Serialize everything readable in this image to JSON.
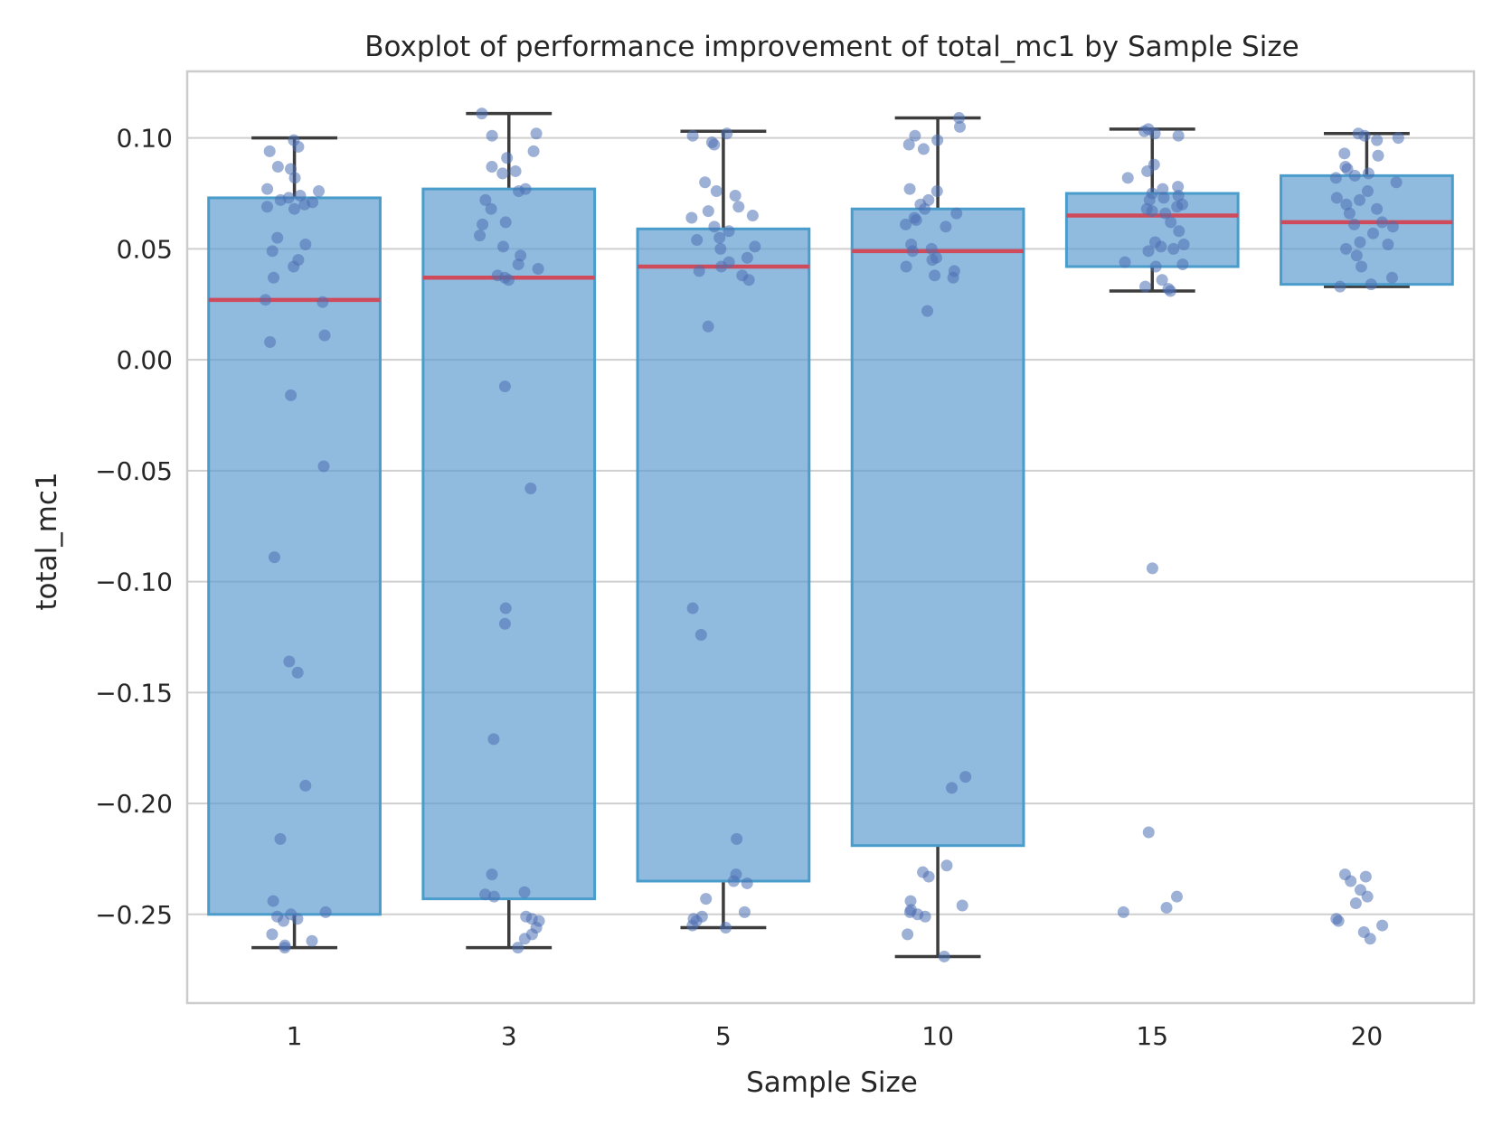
{
  "chart_data": {
    "type": "box",
    "title": "Boxplot of performance improvement of total_mc1 by Sample Size",
    "xlabel": "Sample Size",
    "ylabel": "total_mc1",
    "categories": [
      "1",
      "3",
      "5",
      "10",
      "15",
      "20"
    ],
    "ylim": [
      -0.29,
      0.13
    ],
    "yticks": [
      0.1,
      0.05,
      0.0,
      -0.05,
      -0.1,
      -0.15,
      -0.2,
      -0.25
    ],
    "ytick_labels": [
      "0.10",
      "0.05",
      "0.00",
      "−0.05",
      "−0.10",
      "−0.15",
      "−0.20",
      "−0.25"
    ],
    "grid": true,
    "colors": {
      "box_fill": "#5b9bd0",
      "box_edge": "#4a9ccb",
      "median": "#cf4a5a",
      "whisker": "#3d3d3d",
      "points": "#4c6fb2",
      "grid": "#cfcfcf",
      "frame": "#cccccc"
    },
    "boxes": [
      {
        "category": "1",
        "whisker_low": -0.265,
        "q1": -0.25,
        "median": 0.027,
        "q3": 0.073,
        "whisker_high": 0.1
      },
      {
        "category": "3",
        "whisker_low": -0.265,
        "q1": -0.243,
        "median": 0.037,
        "q3": 0.077,
        "whisker_high": 0.111
      },
      {
        "category": "5",
        "whisker_low": -0.256,
        "q1": -0.235,
        "median": 0.042,
        "q3": 0.059,
        "whisker_high": 0.103
      },
      {
        "category": "10",
        "whisker_low": -0.269,
        "q1": -0.219,
        "median": 0.049,
        "q3": 0.068,
        "whisker_high": 0.109
      },
      {
        "category": "15",
        "whisker_low": 0.031,
        "q1": 0.042,
        "median": 0.065,
        "q3": 0.075,
        "whisker_high": 0.104
      },
      {
        "category": "20",
        "whisker_low": 0.033,
        "q1": 0.034,
        "median": 0.062,
        "q3": 0.083,
        "whisker_high": 0.102
      }
    ],
    "points": [
      [
        0.099,
        0.096,
        0.094,
        0.087,
        0.086,
        0.082,
        0.077,
        0.076,
        0.074,
        0.073,
        0.072,
        0.071,
        0.07,
        0.069,
        0.068,
        0.055,
        0.052,
        0.049,
        0.045,
        0.042,
        0.037,
        0.027,
        0.026,
        0.011,
        0.008,
        -0.016,
        -0.048,
        -0.089,
        -0.136,
        -0.141,
        -0.192,
        -0.216,
        -0.244,
        -0.249,
        -0.25,
        -0.251,
        -0.252,
        -0.253,
        -0.259,
        -0.262,
        -0.264,
        -0.265
      ],
      [
        0.111,
        0.102,
        0.101,
        0.094,
        0.091,
        0.087,
        0.085,
        0.084,
        0.077,
        0.076,
        0.072,
        0.068,
        0.062,
        0.061,
        0.056,
        0.051,
        0.047,
        0.043,
        0.041,
        0.038,
        0.037,
        0.036,
        -0.012,
        -0.058,
        -0.112,
        -0.119,
        -0.171,
        -0.232,
        -0.24,
        -0.241,
        -0.242,
        -0.251,
        -0.252,
        -0.253,
        -0.256,
        -0.259,
        -0.261,
        -0.265
      ],
      [
        0.102,
        0.101,
        0.098,
        0.097,
        0.08,
        0.076,
        0.074,
        0.069,
        0.067,
        0.065,
        0.064,
        0.06,
        0.058,
        0.055,
        0.054,
        0.051,
        0.05,
        0.046,
        0.044,
        0.042,
        0.04,
        0.038,
        0.036,
        0.015,
        -0.112,
        -0.124,
        -0.216,
        -0.232,
        -0.235,
        -0.236,
        -0.243,
        -0.249,
        -0.251,
        -0.252,
        -0.253,
        -0.255,
        -0.256
      ],
      [
        0.109,
        0.105,
        0.101,
        0.099,
        0.097,
        0.095,
        0.076,
        0.077,
        0.072,
        0.07,
        0.068,
        0.066,
        0.064,
        0.063,
        0.061,
        0.06,
        0.052,
        0.05,
        0.049,
        0.046,
        0.045,
        0.042,
        0.04,
        0.038,
        0.037,
        0.022,
        -0.188,
        -0.193,
        -0.228,
        -0.231,
        -0.233,
        -0.244,
        -0.246,
        -0.248,
        -0.249,
        -0.25,
        -0.251,
        -0.259,
        -0.269
      ],
      [
        0.104,
        0.103,
        0.102,
        0.101,
        0.088,
        0.085,
        0.082,
        0.078,
        0.077,
        0.075,
        0.074,
        0.073,
        0.072,
        0.07,
        0.069,
        0.068,
        0.067,
        0.066,
        0.062,
        0.058,
        0.053,
        0.052,
        0.051,
        0.05,
        0.049,
        0.044,
        0.043,
        0.042,
        0.036,
        0.033,
        0.032,
        0.031,
        -0.094,
        -0.213,
        -0.242,
        -0.247,
        -0.249
      ],
      [
        0.102,
        0.101,
        0.1,
        0.099,
        0.093,
        0.092,
        0.087,
        0.086,
        0.084,
        0.083,
        0.082,
        0.08,
        0.076,
        0.073,
        0.072,
        0.07,
        0.068,
        0.066,
        0.062,
        0.061,
        0.06,
        0.057,
        0.053,
        0.052,
        0.05,
        0.047,
        0.042,
        0.037,
        0.034,
        0.033,
        -0.232,
        -0.233,
        -0.235,
        -0.239,
        -0.242,
        -0.245,
        -0.252,
        -0.253,
        -0.255,
        -0.258,
        -0.261
      ]
    ]
  }
}
